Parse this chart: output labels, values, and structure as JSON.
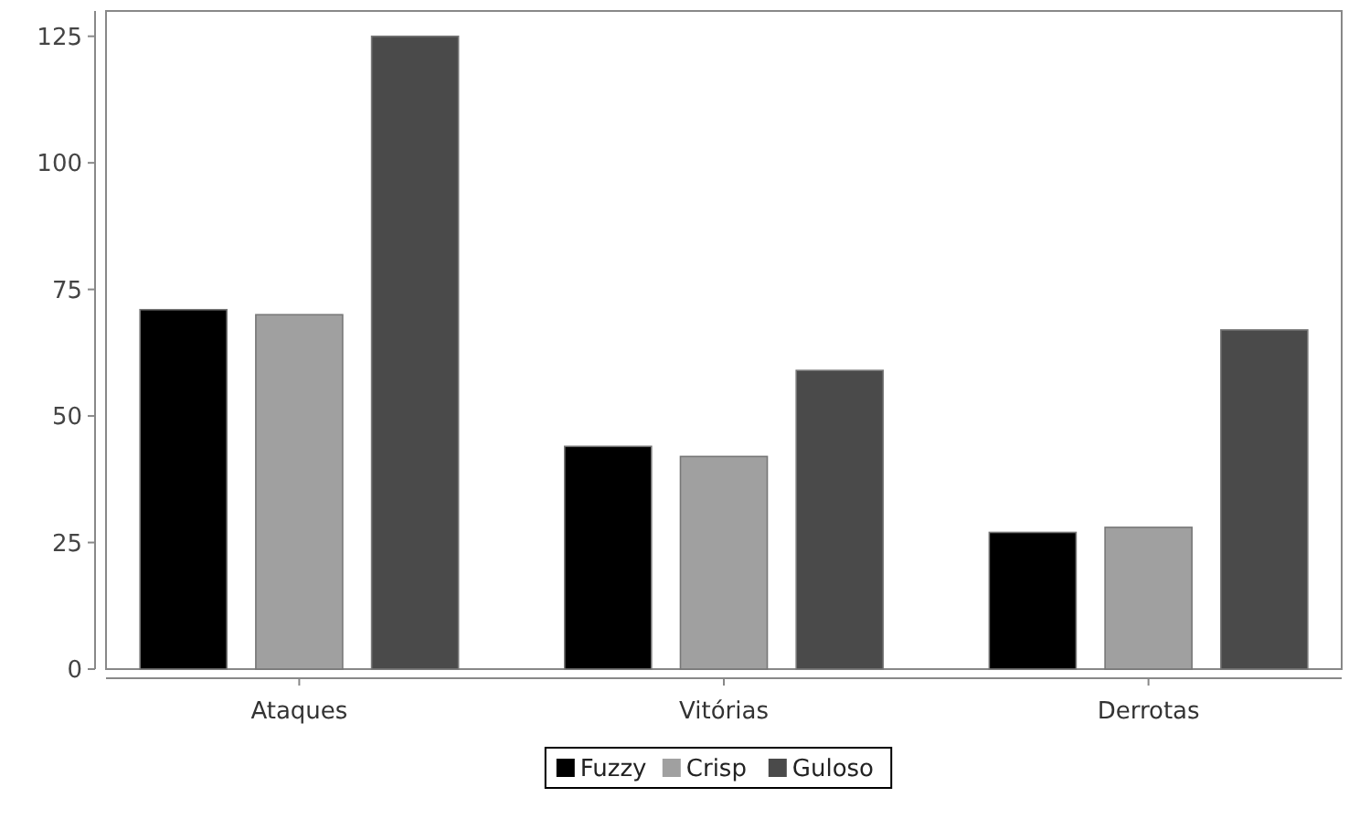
{
  "chart_data": {
    "type": "bar",
    "categories": [
      "Ataques",
      "Vitórias",
      "Derrotas"
    ],
    "series": [
      {
        "name": "Fuzzy",
        "color": "#000000",
        "values": [
          71,
          44,
          27
        ]
      },
      {
        "name": "Crisp",
        "color": "#a0a0a0",
        "values": [
          70,
          42,
          28
        ]
      },
      {
        "name": "Guloso",
        "color": "#4a4a4a",
        "values": [
          125,
          59,
          67
        ]
      }
    ],
    "ylim": [
      0,
      130
    ],
    "yticks": [
      0,
      25,
      50,
      75,
      100,
      125
    ],
    "legend": "bottom"
  }
}
